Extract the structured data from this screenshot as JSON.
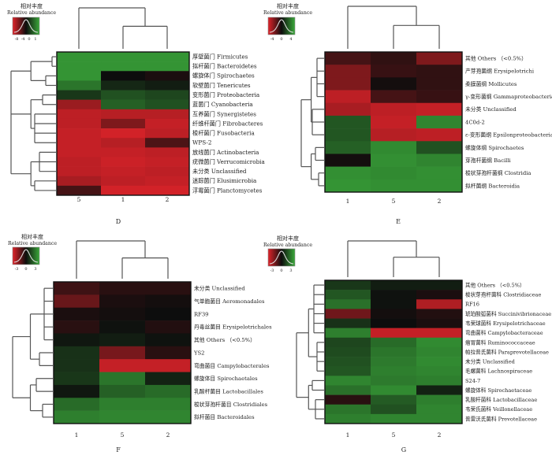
{
  "colors": {
    "low": "#e0232a",
    "mid": "#0d0d0d",
    "high": "#3aa93a",
    "legend_curve": "#dddddd",
    "tree": "#555555"
  },
  "chart_data": [
    {
      "type": "heatmap",
      "panel_label": "D",
      "legend_title_cn": "相对丰度",
      "legend_title_en": "Relative abundance",
      "legend_ticks": [
        "-8",
        "-4",
        "0",
        "1"
      ],
      "value_range": [
        -3,
        3
      ],
      "columns": [
        "5",
        "1",
        "2"
      ],
      "rows": [
        "厚壁菌门 Firmicutes",
        "拟杆菌门 Bacteroidetes",
        "螺旋体门 Spirochaetes",
        "软壁菌门 Tenericutes",
        "变形菌门 Proteobacteria",
        "蓝菌门 Cyanobacteria",
        "互养菌门 Synergistetes",
        "纤维杆菌门 Fibrobacteres",
        "梭杆菌门 Fusobacteria",
        "WPS-2",
        "放线菌门 Actinobacteria",
        "疣微菌门 Verrucomicrobia",
        "未分类 Unclassified",
        "迷踪菌门 Elusimicrobia",
        "浮霉菌门 Planctomycetes"
      ],
      "values": [
        [
          2.6,
          2.6,
          2.6
        ],
        [
          2.6,
          2.6,
          2.6
        ],
        [
          2.6,
          0.0,
          -0.2
        ],
        [
          2.0,
          0.5,
          0.3
        ],
        [
          0.8,
          1.3,
          1.1
        ],
        [
          -2.0,
          1.6,
          1.3
        ],
        [
          -2.5,
          -2.4,
          -2.4
        ],
        [
          -2.5,
          -1.6,
          -2.6
        ],
        [
          -2.6,
          -2.8,
          -2.5
        ],
        [
          -2.6,
          -2.4,
          -0.9
        ],
        [
          -2.6,
          -2.6,
          -2.5
        ],
        [
          -2.5,
          -2.7,
          -2.6
        ],
        [
          -2.5,
          -2.6,
          -2.5
        ],
        [
          -2.2,
          -2.5,
          -2.6
        ],
        [
          -0.8,
          -2.8,
          -2.8
        ]
      ]
    },
    {
      "type": "heatmap",
      "panel_label": "E",
      "legend_title_cn": "相对丰度",
      "legend_title_en": "Relative abundance",
      "legend_ticks": [
        "-4",
        "0",
        "4"
      ],
      "value_range": [
        -3,
        3
      ],
      "columns": [
        "1",
        "5",
        "2"
      ],
      "rows": [
        "其他 Others （<0.5%）",
        "产芽孢菌纲 Erysipelotrichi",
        "柔膜菌纲 Mollicutes",
        "γ-变形菌纲 Gammaproteobacteria",
        "未分类 Unclassified",
        "4C0d-2",
        "ε-变形菌纲 Epsilonproteobacteria",
        "螺旋体纲 Spirochaetes",
        "芽孢杆菌纲 Bacilli",
        "梭状芽孢杆菌纲 Clostridia",
        "拟杆菌纲 Bacteroidia"
      ],
      "values": [
        [
          -0.8,
          -0.5,
          -1.6
        ],
        [
          -1.6,
          -0.6,
          -0.5
        ],
        [
          -1.6,
          -0.1,
          -0.5
        ],
        [
          -2.5,
          -0.8,
          -0.6
        ],
        [
          -2.2,
          -2.5,
          -2.6
        ],
        [
          1.4,
          -2.6,
          2.3
        ],
        [
          1.4,
          -2.4,
          -2.5
        ],
        [
          1.6,
          2.4,
          1.3
        ],
        [
          -0.1,
          2.5,
          2.3
        ],
        [
          2.5,
          2.4,
          2.5
        ],
        [
          2.6,
          2.5,
          2.5
        ]
      ]
    },
    {
      "type": "heatmap",
      "panel_label": "F",
      "legend_title_cn": "相对丰度",
      "legend_title_en": "Relative abundance",
      "legend_ticks": [
        "-3",
        "0",
        "3"
      ],
      "value_range": [
        -3,
        3
      ],
      "columns": [
        "1",
        "5",
        "2"
      ],
      "rows": [
        "未分类 Unclassified",
        "气单胞菌目 Aeromonadales",
        "RF39",
        "丹毒丝菌目 Erysipelotrichales",
        "其他 Others （<0.5%）",
        "YS2",
        "弯曲菌目 Campylobacterales",
        "螺旋体目 Spirochaetales",
        "乳酸杆菌目 Lactobacillales",
        "梭状芽孢杆菌目 Clostridiales",
        "拟杆菌目 Bacteroidales"
      ],
      "values": [
        [
          -0.7,
          -0.4,
          -0.4
        ],
        [
          -1.3,
          -0.2,
          -0.1
        ],
        [
          -0.2,
          -0.1,
          0.0
        ],
        [
          -0.4,
          0.1,
          -0.3
        ],
        [
          0.2,
          0.3,
          0.1
        ],
        [
          0.7,
          -1.5,
          -0.4
        ],
        [
          0.7,
          -2.6,
          -2.6
        ],
        [
          0.8,
          2.0,
          0.4
        ],
        [
          0.2,
          1.6,
          1.8
        ],
        [
          1.8,
          2.2,
          2.2
        ],
        [
          2.2,
          2.3,
          2.3
        ]
      ]
    },
    {
      "type": "heatmap",
      "panel_label": "G",
      "legend_title_cn": "相对丰度",
      "legend_title_en": "Relative abundance",
      "legend_ticks": [
        "-3",
        "0",
        "3"
      ],
      "value_range": [
        -3,
        3
      ],
      "columns": [
        "1",
        "5",
        "2"
      ],
      "rows": [
        "其他 Others （<0.5%）",
        "梭状芽孢杆菌科 Clostridiaceae",
        "RF16",
        "琥珀酸弧菌科 Succinivibrionaceae",
        "韦荣球菌科 Erysipelotrichaceae",
        "弯曲菌科 Campylobacteraceae",
        "瘤胃菌科 Ruminococcaceae",
        "帕拉普氏菌科 Paraprevotellaceae",
        "未分类 Unclassified",
        "毛螺菌科 Lachnospiraceae",
        "S24-7",
        "螺旋体科 Spirochaetaceae",
        "乳酸杆菌科 Lactobacillaceae",
        "韦荣氏菌科 Veillonellaceae",
        "普雷沃氏菌科 Prevotellaceae"
      ],
      "values": [
        [
          0.8,
          0.3,
          0.3
        ],
        [
          1.4,
          0.1,
          -0.2
        ],
        [
          1.9,
          0.1,
          -2.3
        ],
        [
          -1.4,
          -0.1,
          -0.3
        ],
        [
          0.7,
          0.0,
          -0.2
        ],
        [
          2.2,
          -2.6,
          -2.6
        ],
        [
          1.1,
          1.8,
          2.4
        ],
        [
          1.2,
          2.0,
          2.3
        ],
        [
          1.3,
          2.1,
          2.4
        ],
        [
          1.4,
          2.2,
          2.3
        ],
        [
          2.3,
          2.1,
          2.2
        ],
        [
          1.9,
          2.4,
          0.4
        ],
        [
          -0.4,
          1.5,
          2.2
        ],
        [
          2.0,
          1.3,
          2.3
        ],
        [
          2.2,
          2.3,
          2.3
        ]
      ]
    }
  ]
}
